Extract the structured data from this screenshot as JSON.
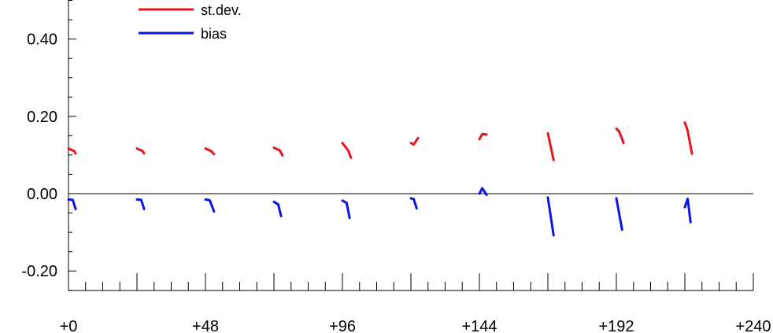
{
  "chart_data": {
    "type": "line",
    "title": "",
    "xlabel": "",
    "ylabel": "",
    "xlim": [
      0,
      240
    ],
    "ylim": [
      -0.25,
      0.5
    ],
    "x_ticks": [
      "+0",
      "+48",
      "+96",
      "+144",
      "+192",
      "+240"
    ],
    "x_tick_values": [
      0,
      48,
      96,
      144,
      192,
      240
    ],
    "y_ticks": [
      "0.40",
      "0.20",
      "0.00",
      "-0.20"
    ],
    "y_tick_values": [
      0.4,
      0.2,
      0.0,
      -0.2
    ],
    "zero_line": true,
    "legend_position": "top-left",
    "series": [
      {
        "name": "st.dev.",
        "color": "#e8141c",
        "segments": [
          [
            [
              0,
              0.117
            ],
            [
              2,
              0.11
            ],
            [
              2.5,
              0.104
            ]
          ],
          [
            [
              24,
              0.117
            ],
            [
              26,
              0.11
            ],
            [
              26.5,
              0.104
            ]
          ],
          [
            [
              48,
              0.117
            ],
            [
              50,
              0.11
            ],
            [
              51,
              0.102
            ]
          ],
          [
            [
              72,
              0.119
            ],
            [
              74,
              0.112
            ],
            [
              75,
              0.099
            ]
          ],
          [
            [
              96,
              0.131
            ],
            [
              98,
              0.112
            ],
            [
              99,
              0.093
            ]
          ],
          [
            [
              120,
              0.131
            ],
            [
              121,
              0.127
            ],
            [
              122.5,
              0.144
            ]
          ],
          [
            [
              144,
              0.141
            ],
            [
              145,
              0.154
            ],
            [
              146.5,
              0.153
            ]
          ],
          [
            [
              168,
              0.156
            ],
            [
              170,
              0.087
            ]
          ],
          [
            [
              192,
              0.168
            ],
            [
              193,
              0.161
            ],
            [
              194.5,
              0.131
            ]
          ],
          [
            [
              216,
              0.184
            ],
            [
              217,
              0.163
            ],
            [
              218.5,
              0.103
            ]
          ]
        ]
      },
      {
        "name": "bias",
        "color": "#0a14e6",
        "segments": [
          [
            [
              0,
              -0.015
            ],
            [
              1.5,
              -0.016
            ],
            [
              2.5,
              -0.04
            ]
          ],
          [
            [
              24,
              -0.015
            ],
            [
              25.5,
              -0.016
            ],
            [
              26.5,
              -0.04
            ]
          ],
          [
            [
              48,
              -0.015
            ],
            [
              49.5,
              -0.017
            ],
            [
              51,
              -0.046
            ]
          ],
          [
            [
              72,
              -0.021
            ],
            [
              73.5,
              -0.028
            ],
            [
              74.5,
              -0.058
            ]
          ],
          [
            [
              96,
              -0.018
            ],
            [
              97.5,
              -0.024
            ],
            [
              98.5,
              -0.063
            ]
          ],
          [
            [
              120,
              -0.012
            ],
            [
              121,
              -0.014
            ],
            [
              122,
              -0.038
            ]
          ],
          [
            [
              144,
              0.0
            ],
            [
              145,
              0.014
            ],
            [
              146.5,
              -0.003
            ]
          ],
          [
            [
              168,
              -0.01
            ],
            [
              170,
              -0.108
            ]
          ],
          [
            [
              192,
              -0.012
            ],
            [
              194,
              -0.093
            ]
          ],
          [
            [
              216,
              -0.035
            ],
            [
              217,
              -0.013
            ],
            [
              218,
              -0.074
            ]
          ]
        ]
      }
    ]
  }
}
